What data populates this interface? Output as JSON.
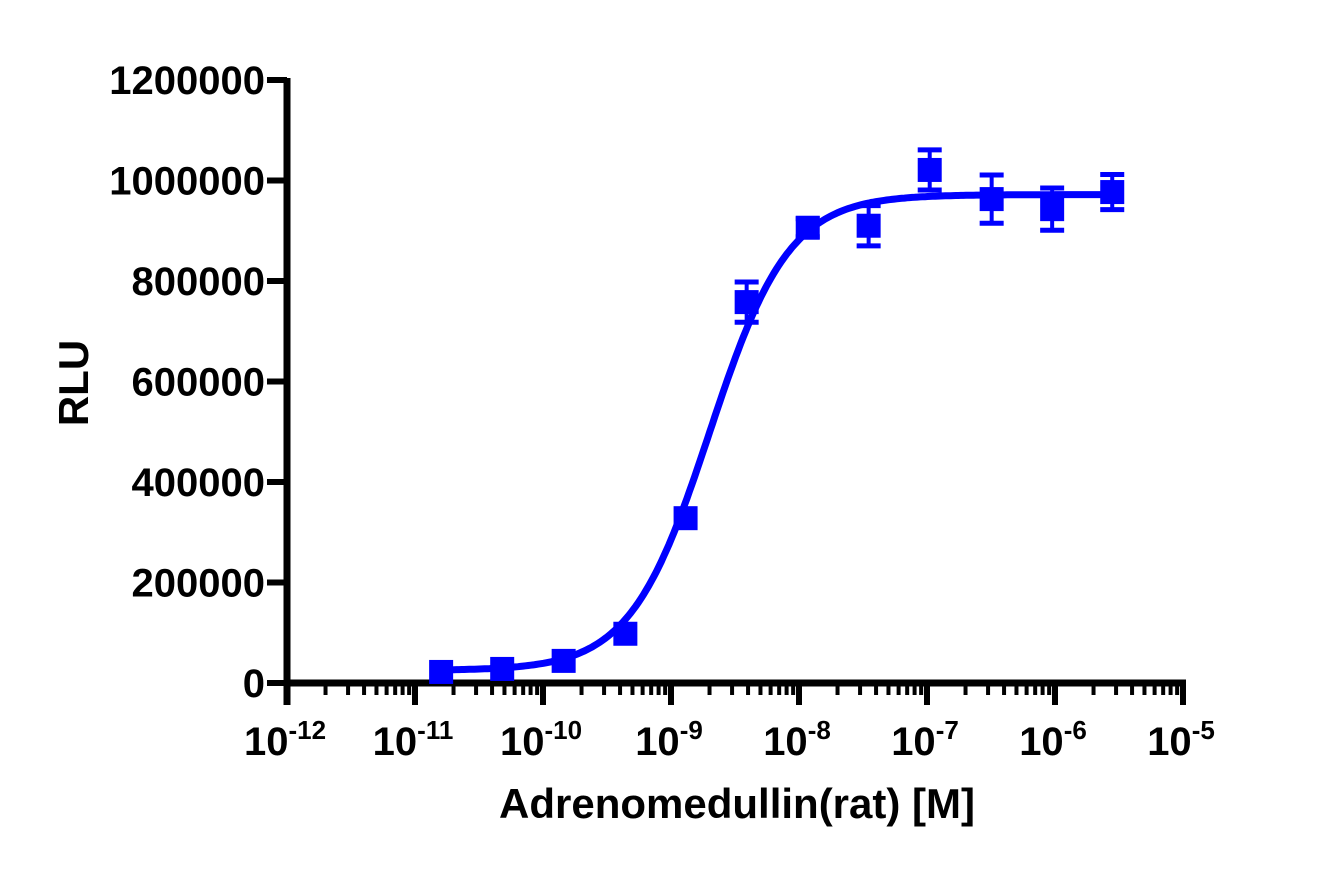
{
  "chart_data": {
    "type": "scatter",
    "title": "",
    "xlabel": "Adrenomedullin(rat) [M]",
    "ylabel": "RLU",
    "xscale": "log",
    "xlim": [
      1e-12,
      1e-05
    ],
    "ylim": [
      0,
      1200000
    ],
    "x_tick_labels": [
      "10-12",
      "10-11",
      "10-10",
      "10-9",
      "10-8",
      "10-7",
      "10-6",
      "10-5"
    ],
    "y_tick_labels": [
      "0",
      "200000",
      "400000",
      "600000",
      "800000",
      "1000000",
      "1200000"
    ],
    "grid": false,
    "legend": null,
    "color": "#0000FF",
    "fit": "sigmoidal dose-response (4PL)",
    "fit_params": {
      "bottom": 25000,
      "top": 972000,
      "ec50": 2e-09,
      "hill": 1.4
    },
    "series": [
      {
        "name": "Adrenomedullin(rat)",
        "x": [
          1.6e-11,
          4.8e-11,
          1.45e-10,
          4.4e-10,
          1.3e-09,
          3.9e-09,
          1.17e-08,
          3.5e-08,
          1.05e-07,
          3.2e-07,
          9.5e-07,
          2.8e-06
        ],
        "y": [
          22000,
          28000,
          44000,
          98000,
          328000,
          758000,
          906000,
          910000,
          1021000,
          963000,
          943000,
          977000
        ],
        "error": [
          5000,
          5000,
          6000,
          8000,
          12000,
          40000,
          18000,
          40000,
          40000,
          48000,
          42000,
          35000
        ]
      }
    ]
  }
}
